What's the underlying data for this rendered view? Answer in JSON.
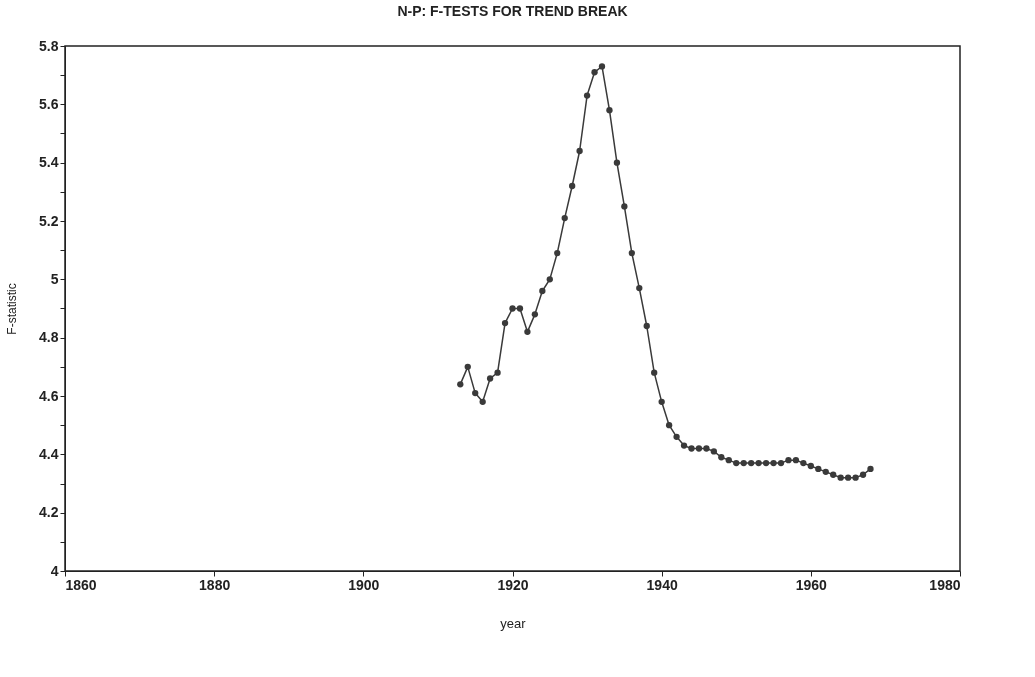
{
  "chart_data": {
    "type": "line",
    "title": "N-P: F-TESTS FOR TREND BREAK",
    "xlabel": "year",
    "ylabel": "F-statistic",
    "x": [
      1913,
      1914,
      1915,
      1916,
      1917,
      1918,
      1919,
      1920,
      1921,
      1922,
      1923,
      1924,
      1925,
      1926,
      1927,
      1928,
      1929,
      1930,
      1931,
      1932,
      1933,
      1934,
      1935,
      1936,
      1937,
      1938,
      1939,
      1940,
      1941,
      1942,
      1943,
      1944,
      1945,
      1946,
      1947,
      1948,
      1949,
      1950,
      1951,
      1952,
      1953,
      1954,
      1955,
      1956,
      1957,
      1958,
      1959,
      1960,
      1961,
      1962,
      1963,
      1964,
      1965,
      1966,
      1967,
      1968
    ],
    "series": [
      {
        "color": "#3a3a3a",
        "values": [
          4.64,
          4.7,
          4.61,
          4.58,
          4.66,
          4.68,
          4.85,
          4.9,
          4.9,
          4.82,
          4.88,
          4.96,
          5.0,
          5.09,
          5.21,
          5.32,
          5.44,
          5.63,
          5.71,
          5.73,
          5.58,
          5.4,
          5.25,
          5.09,
          4.97,
          4.84,
          4.68,
          4.58,
          4.5,
          4.46,
          4.43,
          4.42,
          4.42,
          4.42,
          4.41,
          4.39,
          4.38,
          4.37,
          4.37,
          4.37,
          4.37,
          4.37,
          4.37,
          4.37,
          4.38,
          4.38,
          4.37,
          4.36,
          4.35,
          4.34,
          4.33,
          4.32,
          4.32,
          4.32,
          4.33,
          4.35
        ]
      }
    ],
    "xlim": [
      1860,
      1980
    ],
    "xticks": [
      1860,
      1880,
      1900,
      1920,
      1940,
      1960,
      1980
    ],
    "ylim": [
      4,
      5.8
    ],
    "yticks": [
      4,
      {
        "value": 4.1,
        "label": null
      },
      4.2,
      {
        "value": 4.3,
        "label": null
      },
      4.4,
      {
        "value": 4.5,
        "label": null
      },
      4.6,
      {
        "value": 4.7,
        "label": null
      },
      4.8,
      {
        "value": 4.9,
        "label": null
      },
      5,
      {
        "value": 5.1,
        "label": null
      },
      5.2,
      {
        "value": 5.3,
        "label": null
      },
      5.4,
      {
        "value": 5.5,
        "label": null
      },
      5.6,
      {
        "value": 5.7,
        "label": null
      },
      5.8
    ],
    "grid": false,
    "legend": false,
    "marker": "circle",
    "line_style": "solid"
  }
}
